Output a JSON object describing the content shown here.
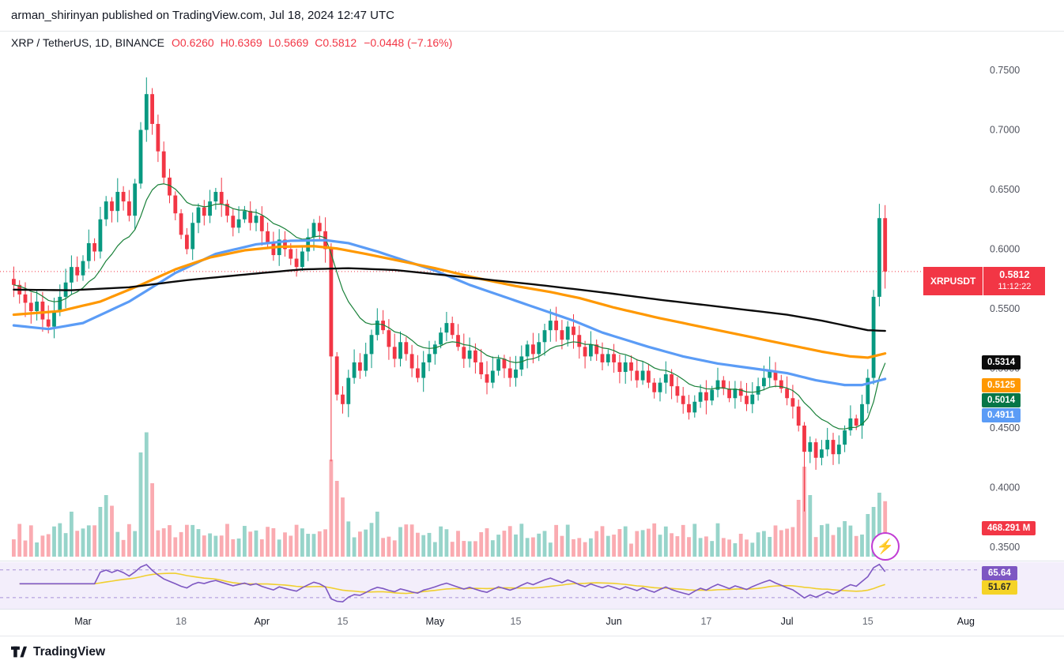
{
  "attribution": {
    "text": "arman_shirinyan published on TradingView.com, Jul 18, 2024 12:47 UTC"
  },
  "legend": {
    "symbol": "XRP / TetherUS, 1D, BINANCE",
    "items": [
      {
        "k": "O",
        "v": "0.6260"
      },
      {
        "k": "H",
        "v": "0.6369"
      },
      {
        "k": "L",
        "v": "0.5669"
      },
      {
        "k": "C",
        "v": "0.5812"
      }
    ],
    "change": "−0.0448 (−7.16%)"
  },
  "price_scale": {
    "ticks": [
      {
        "text": "0.7500",
        "value": 0.75
      },
      {
        "text": "0.7000",
        "value": 0.7
      },
      {
        "text": "0.6500",
        "value": 0.65
      },
      {
        "text": "0.6000",
        "value": 0.6
      },
      {
        "text": "0.5500",
        "value": 0.55
      },
      {
        "text": "0.5000",
        "value": 0.5
      },
      {
        "text": "0.4500",
        "value": 0.45
      },
      {
        "text": "0.4000",
        "value": 0.4
      },
      {
        "text": "0.3500",
        "value": 0.35
      }
    ],
    "symbol_badge": {
      "symbol": "XRPUSDT",
      "price": "0.5812",
      "countdown": "11:12:22",
      "color": "#f23645"
    },
    "ma_badges": [
      {
        "label": "0.5314",
        "value": 0.5314,
        "color": "#0b0b0b",
        "text_color": "#ffffff"
      },
      {
        "label": "0.5125",
        "value": 0.5125,
        "color": "#ff9800",
        "text_color": "#ffffff"
      },
      {
        "label": "0.5014",
        "value": 0.5014,
        "color": "#067647",
        "text_color": "#ffffff"
      },
      {
        "label": "0.4911",
        "value": 0.4911,
        "color": "#5b9cf6",
        "text_color": "#ffffff"
      }
    ],
    "volume_badge": "468.291 M",
    "rsi_badges": {
      "purple": "65.64",
      "yellow": "51.67"
    }
  },
  "time_axis": {
    "labels": [
      {
        "text": "Mar",
        "index": 12,
        "major": true
      },
      {
        "text": "18",
        "index": 29,
        "major": false
      },
      {
        "text": "Apr",
        "index": 43,
        "major": true
      },
      {
        "text": "15",
        "index": 57,
        "major": false
      },
      {
        "text": "May",
        "index": 73,
        "major": true
      },
      {
        "text": "15",
        "index": 87,
        "major": false
      },
      {
        "text": "Jun",
        "index": 104,
        "major": true
      },
      {
        "text": "17",
        "index": 120,
        "major": false
      },
      {
        "text": "Jul",
        "index": 134,
        "major": true
      },
      {
        "text": "15",
        "index": 148,
        "major": false
      },
      {
        "text": "Aug",
        "index": 165,
        "major": true
      }
    ]
  },
  "footer": {
    "brand": "TradingView"
  },
  "chart_data": {
    "type": "candlestick",
    "symbol": "XRP/USDT",
    "exchange": "BINANCE",
    "interval": "1D",
    "date_range": {
      "start": "2024-02-18",
      "end": "2024-07-18"
    },
    "price_axis": {
      "min": 0.35,
      "max": 0.75,
      "tick_step": 0.05
    },
    "last": {
      "open": 0.626,
      "high": 0.6369,
      "low": 0.5669,
      "close": 0.5812,
      "change": -0.0448,
      "change_pct": -7.16,
      "countdown": "11:12:22"
    },
    "first_open": 0.575,
    "closes": [
      0.57,
      0.562,
      0.555,
      0.548,
      0.556,
      0.541,
      0.535,
      0.548,
      0.56,
      0.572,
      0.585,
      0.578,
      0.59,
      0.605,
      0.598,
      0.625,
      0.64,
      0.632,
      0.648,
      0.64,
      0.628,
      0.655,
      0.7,
      0.73,
      0.705,
      0.682,
      0.66,
      0.645,
      0.63,
      0.612,
      0.6,
      0.622,
      0.635,
      0.628,
      0.64,
      0.648,
      0.638,
      0.628,
      0.618,
      0.625,
      0.632,
      0.622,
      0.628,
      0.615,
      0.605,
      0.595,
      0.608,
      0.6,
      0.592,
      0.585,
      0.598,
      0.61,
      0.622,
      0.615,
      0.6,
      0.51,
      0.478,
      0.47,
      0.492,
      0.505,
      0.498,
      0.512,
      0.528,
      0.54,
      0.532,
      0.518,
      0.508,
      0.522,
      0.512,
      0.5,
      0.492,
      0.505,
      0.512,
      0.52,
      0.53,
      0.538,
      0.528,
      0.518,
      0.508,
      0.515,
      0.505,
      0.495,
      0.488,
      0.498,
      0.508,
      0.5,
      0.492,
      0.499,
      0.51,
      0.52,
      0.512,
      0.522,
      0.532,
      0.54,
      0.532,
      0.524,
      0.535,
      0.528,
      0.518,
      0.51,
      0.52,
      0.512,
      0.505,
      0.512,
      0.505,
      0.497,
      0.505,
      0.498,
      0.49,
      0.498,
      0.488,
      0.48,
      0.488,
      0.495,
      0.485,
      0.477,
      0.47,
      0.463,
      0.472,
      0.48,
      0.473,
      0.482,
      0.49,
      0.483,
      0.475,
      0.483,
      0.477,
      0.47,
      0.478,
      0.485,
      0.492,
      0.498,
      0.49,
      0.483,
      0.475,
      0.468,
      0.452,
      0.43,
      0.438,
      0.425,
      0.432,
      0.44,
      0.428,
      0.436,
      0.448,
      0.458,
      0.452,
      0.47,
      0.492,
      0.56,
      0.626,
      0.5812
    ],
    "key_candles": {
      "23": [
        0.7,
        0.744,
        0.69,
        0.73
      ],
      "55": [
        0.6,
        0.605,
        0.422,
        0.51
      ],
      "137": [
        0.452,
        0.455,
        0.38,
        0.43
      ],
      "150": [
        0.56,
        0.638,
        0.552,
        0.626
      ],
      "151": [
        0.626,
        0.6369,
        0.5669,
        0.5812
      ]
    },
    "volume": {
      "current_label": "468.291 M",
      "max_scale": 1100,
      "overrides": {
        "10": 380,
        "15": 420,
        "16": 520,
        "17": 430,
        "22": 880,
        "23": 1050,
        "24": 620,
        "55": 820,
        "56": 640,
        "57": 500,
        "63": 380,
        "136": 480,
        "137": 760,
        "138": 520,
        "144": 300,
        "148": 360,
        "149": 420,
        "150": 540,
        "151": 468.291
      }
    },
    "moving_averages": [
      {
        "name": "ma-green",
        "value_label": "0.5014",
        "color": "#188038",
        "width": 1.2,
        "type": "ema",
        "period": 14
      },
      {
        "name": "ma-blue",
        "value_label": "0.4911",
        "color": "#5b9cf6",
        "width": 3.2,
        "type": "keyframes",
        "keyframes": [
          [
            0,
            0.536
          ],
          [
            6,
            0.533
          ],
          [
            12,
            0.538
          ],
          [
            20,
            0.556
          ],
          [
            28,
            0.58
          ],
          [
            35,
            0.596
          ],
          [
            42,
            0.604
          ],
          [
            48,
            0.607
          ],
          [
            54,
            0.6075
          ],
          [
            58,
            0.605
          ],
          [
            63,
            0.598
          ],
          [
            68,
            0.59
          ],
          [
            73,
            0.582
          ],
          [
            79,
            0.57
          ],
          [
            85,
            0.56
          ],
          [
            91,
            0.55
          ],
          [
            97,
            0.54
          ],
          [
            102,
            0.53
          ],
          [
            104,
            0.527
          ],
          [
            110,
            0.518
          ],
          [
            116,
            0.51
          ],
          [
            122,
            0.504
          ],
          [
            128,
            0.5
          ],
          [
            134,
            0.496
          ],
          [
            139,
            0.49
          ],
          [
            144,
            0.486
          ],
          [
            147,
            0.486
          ],
          [
            151,
            0.4911
          ]
        ]
      },
      {
        "name": "ma-orange",
        "value_label": "0.5125",
        "color": "#ff9800",
        "width": 3.2,
        "type": "keyframes",
        "keyframes": [
          [
            0,
            0.545
          ],
          [
            8,
            0.548
          ],
          [
            15,
            0.556
          ],
          [
            22,
            0.57
          ],
          [
            28,
            0.583
          ],
          [
            34,
            0.593
          ],
          [
            40,
            0.599
          ],
          [
            46,
            0.602
          ],
          [
            52,
            0.6025
          ],
          [
            56,
            0.6005
          ],
          [
            61,
            0.596
          ],
          [
            66,
            0.591
          ],
          [
            73,
            0.584
          ],
          [
            80,
            0.576
          ],
          [
            87,
            0.569
          ],
          [
            93,
            0.564
          ],
          [
            98,
            0.559
          ],
          [
            104,
            0.551
          ],
          [
            112,
            0.542
          ],
          [
            120,
            0.534
          ],
          [
            127,
            0.527
          ],
          [
            134,
            0.52
          ],
          [
            140,
            0.514
          ],
          [
            145,
            0.51
          ],
          [
            148,
            0.509
          ],
          [
            151,
            0.5125
          ]
        ]
      },
      {
        "name": "ma-black",
        "value_label": "0.5314",
        "color": "#0b0b0b",
        "width": 2.4,
        "type": "keyframes",
        "keyframes": [
          [
            0,
            0.566
          ],
          [
            10,
            0.5655
          ],
          [
            20,
            0.568
          ],
          [
            30,
            0.574
          ],
          [
            43,
            0.58
          ],
          [
            50,
            0.583
          ],
          [
            58,
            0.584
          ],
          [
            66,
            0.5825
          ],
          [
            73,
            0.579
          ],
          [
            82,
            0.5745
          ],
          [
            90,
            0.5705
          ],
          [
            98,
            0.566
          ],
          [
            104,
            0.5625
          ],
          [
            112,
            0.5575
          ],
          [
            120,
            0.553
          ],
          [
            127,
            0.549
          ],
          [
            134,
            0.545
          ],
          [
            140,
            0.54
          ],
          [
            145,
            0.535
          ],
          [
            148,
            0.532
          ],
          [
            151,
            0.5314
          ]
        ]
      }
    ],
    "oscillator": {
      "name": "RSI",
      "period": 14,
      "bands": [
        70,
        30
      ],
      "lines": [
        {
          "name": "rsi",
          "color": "#7e57c2",
          "last": 65.64
        },
        {
          "name": "rsi-ma",
          "color": "#f0cf2e",
          "last": 51.67
        }
      ],
      "pane_range": [
        15,
        80
      ]
    }
  }
}
